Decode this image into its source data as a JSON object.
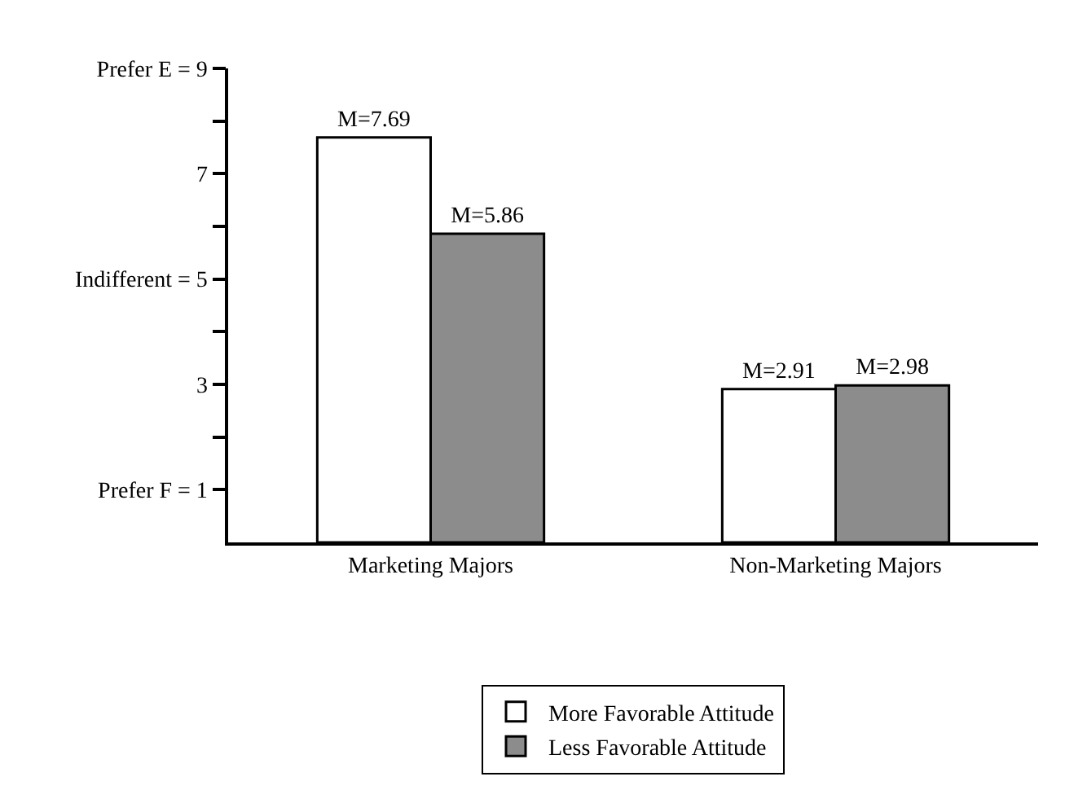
{
  "chart_data": {
    "type": "bar",
    "categories": [
      "Marketing Majors",
      "Non-Marketing Majors"
    ],
    "series": [
      {
        "name": "More Favorable Attitude",
        "color": "#ffffff",
        "values": [
          7.69,
          2.91
        ],
        "value_labels": [
          "M=7.69",
          "M=2.91"
        ]
      },
      {
        "name": "Less Favorable Attitude",
        "color": "#8c8c8c",
        "values": [
          5.86,
          2.98
        ],
        "value_labels": [
          "M=5.86",
          "M=2.98"
        ]
      }
    ],
    "ylim": [
      0,
      9
    ],
    "yticks": [
      {
        "value": 1,
        "label": "Prefer F = 1"
      },
      {
        "value": 2,
        "label": null
      },
      3,
      {
        "value": 4,
        "label": null
      },
      {
        "value": 5,
        "label": "Indifferent = 5"
      },
      {
        "value": 6,
        "label": null
      },
      7,
      {
        "value": 8,
        "label": null
      },
      {
        "value": 9,
        "label": "Prefer E = 9"
      }
    ],
    "grid": false,
    "legend": "bottom"
  }
}
